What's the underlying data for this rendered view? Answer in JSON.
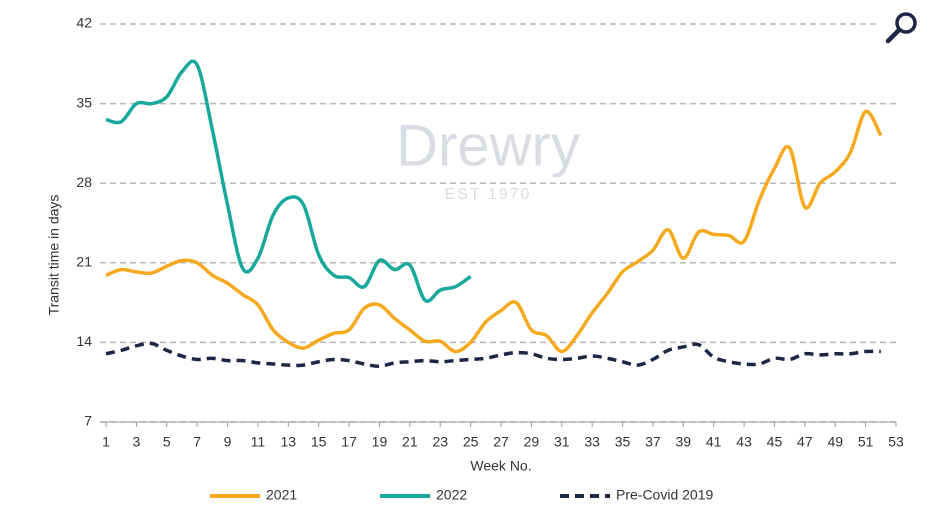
{
  "chart_data": {
    "type": "line",
    "watermark": {
      "brand": "Drewry",
      "tagline": "EST 1970"
    },
    "xlabel": "Week No.",
    "ylabel": "Transit time in days",
    "xlim": [
      1,
      53
    ],
    "xticks": [
      1,
      3,
      5,
      7,
      9,
      11,
      13,
      15,
      17,
      19,
      21,
      23,
      25,
      27,
      29,
      31,
      33,
      35,
      37,
      39,
      41,
      43,
      45,
      47,
      49,
      51,
      53
    ],
    "ylim": [
      7,
      42
    ],
    "yticks": [
      7,
      14,
      21,
      28,
      35,
      42
    ],
    "grid": true,
    "series": [
      {
        "name": "2021",
        "color": "#f5a91f",
        "dashed": false,
        "x": [
          1,
          2,
          3,
          4,
          5,
          6,
          7,
          8,
          9,
          10,
          11,
          12,
          13,
          14,
          15,
          16,
          17,
          18,
          19,
          20,
          21,
          22,
          23,
          24,
          25,
          26,
          27,
          28,
          29,
          30,
          31,
          32,
          33,
          34,
          35,
          36,
          37,
          38,
          39,
          40,
          41,
          42,
          43,
          44,
          45,
          46,
          47,
          48,
          49,
          50,
          51,
          52
        ],
        "values": [
          19.9,
          20.4,
          20.2,
          20.1,
          20.7,
          21.2,
          21.0,
          19.9,
          19.2,
          18.2,
          17.3,
          15.1,
          14.0,
          13.5,
          14.2,
          14.8,
          15.1,
          17.0,
          17.3,
          16.1,
          15.1,
          14.1,
          14.1,
          13.2,
          14.0,
          15.8,
          16.8,
          17.5,
          15.1,
          14.6,
          13.2,
          14.6,
          16.6,
          18.3,
          20.2,
          21.1,
          22.1,
          23.9,
          21.4,
          23.7,
          23.5,
          23.4,
          22.9,
          26.5,
          29.3,
          31.1,
          25.9,
          28.0,
          29.0,
          30.7,
          34.3,
          32.2
        ]
      },
      {
        "name": "2022",
        "color": "#18a89c",
        "dashed": false,
        "x": [
          1,
          2,
          3,
          4,
          5,
          6,
          7,
          8,
          9,
          10,
          11,
          12,
          13,
          14,
          15,
          16,
          17,
          18,
          19,
          20,
          21,
          22,
          23,
          24,
          25
        ],
        "values": [
          33.6,
          33.4,
          35.0,
          35.0,
          35.6,
          37.8,
          38.4,
          32.7,
          26.1,
          20.5,
          21.4,
          25.2,
          26.7,
          26.1,
          21.7,
          19.9,
          19.7,
          18.9,
          21.2,
          20.4,
          20.8,
          17.7,
          18.6,
          18.9,
          19.8
        ]
      },
      {
        "name": "Pre-Covid 2019",
        "color": "#1c2746",
        "dashed": true,
        "x": [
          1,
          2,
          3,
          4,
          5,
          6,
          7,
          8,
          9,
          10,
          11,
          12,
          13,
          14,
          15,
          16,
          17,
          18,
          19,
          20,
          21,
          22,
          23,
          24,
          25,
          26,
          27,
          28,
          29,
          30,
          31,
          32,
          33,
          34,
          35,
          36,
          37,
          38,
          39,
          40,
          41,
          42,
          43,
          44,
          45,
          46,
          47,
          48,
          49,
          50,
          51,
          52
        ],
        "values": [
          13.0,
          13.3,
          13.7,
          13.9,
          13.3,
          12.8,
          12.5,
          12.6,
          12.4,
          12.4,
          12.2,
          12.1,
          12.0,
          12.0,
          12.3,
          12.5,
          12.4,
          12.1,
          11.9,
          12.2,
          12.3,
          12.4,
          12.3,
          12.4,
          12.5,
          12.6,
          12.9,
          13.1,
          13.0,
          12.6,
          12.5,
          12.6,
          12.8,
          12.6,
          12.3,
          12.0,
          12.5,
          13.3,
          13.6,
          13.8,
          12.7,
          12.3,
          12.1,
          12.1,
          12.6,
          12.5,
          13.0,
          12.9,
          13.0,
          13.0,
          13.2,
          13.2
        ]
      }
    ]
  }
}
